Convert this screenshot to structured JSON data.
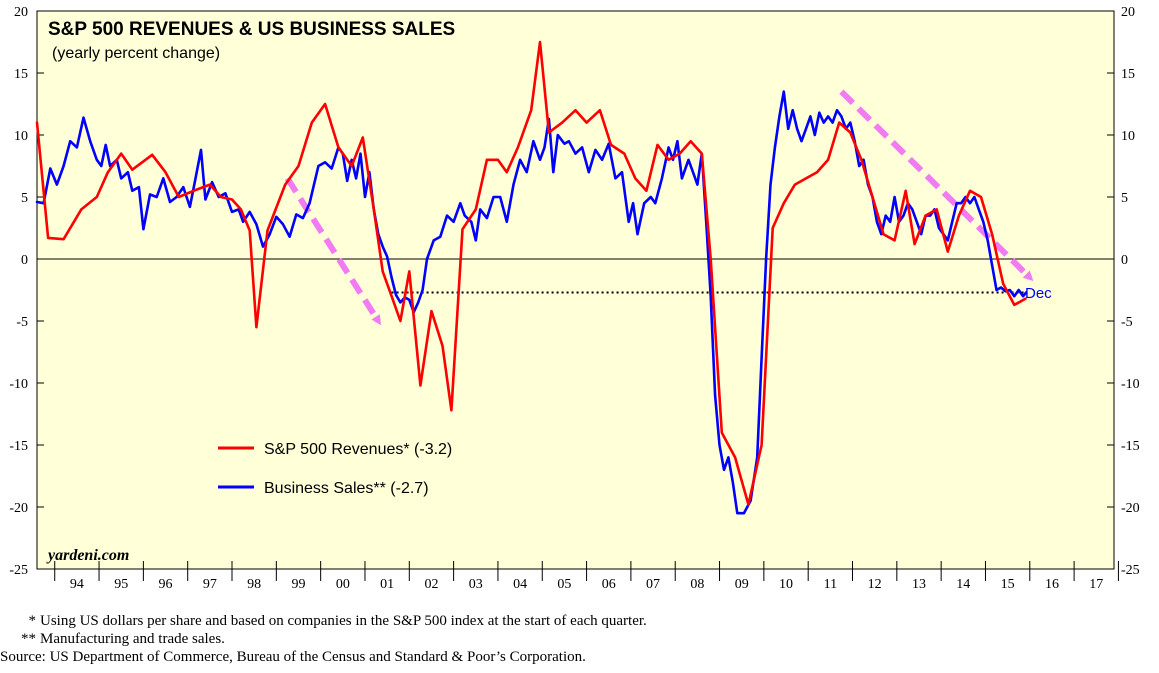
{
  "chart_data": {
    "type": "line",
    "title": "S&P 500 REVENUES & US BUSINESS SALES",
    "subtitle": "(yearly percent change)",
    "watermark": "yardeni.com",
    "ylim": [
      -25,
      20
    ],
    "y_ticks": [
      20,
      15,
      10,
      5,
      0,
      -5,
      -10,
      -15,
      -20,
      -25
    ],
    "xlim": [
      1993.6,
      2017.9
    ],
    "x_tick_labels": [
      "94",
      "95",
      "96",
      "97",
      "98",
      "99",
      "00",
      "01",
      "02",
      "03",
      "04",
      "05",
      "06",
      "07",
      "08",
      "09",
      "10",
      "11",
      "12",
      "13",
      "14",
      "15",
      "16",
      "17"
    ],
    "grid": false,
    "legend_position": "lower-left",
    "annotation_dec": "Dec",
    "reference_line_value": -2.7,
    "series": [
      {
        "name": "S&P 500 Revenues* (-3.2)",
        "color": "#ff0000",
        "points": [
          [
            1993.6,
            11
          ],
          [
            1993.85,
            1.7
          ],
          [
            1994.2,
            1.6
          ],
          [
            1994.6,
            4
          ],
          [
            1994.95,
            5
          ],
          [
            1995.2,
            7
          ],
          [
            1995.5,
            8.5
          ],
          [
            1995.75,
            7.2
          ],
          [
            1996.2,
            8.4
          ],
          [
            1996.5,
            7
          ],
          [
            1996.8,
            5
          ],
          [
            1997.2,
            5.6
          ],
          [
            1997.5,
            6
          ],
          [
            1997.75,
            5
          ],
          [
            1998.0,
            4.8
          ],
          [
            1998.2,
            4
          ],
          [
            1998.4,
            2.3
          ],
          [
            1998.55,
            -5.5
          ],
          [
            1998.8,
            2.3
          ],
          [
            1999.2,
            6
          ],
          [
            1999.5,
            7.5
          ],
          [
            1999.8,
            11
          ],
          [
            2000.1,
            12.5
          ],
          [
            2000.4,
            9
          ],
          [
            2000.7,
            7.5
          ],
          [
            2000.95,
            9.8
          ],
          [
            2001.2,
            4
          ],
          [
            2001.4,
            -1
          ],
          [
            2001.6,
            -3
          ],
          [
            2001.8,
            -5
          ],
          [
            2002.0,
            -1
          ],
          [
            2002.25,
            -10.2
          ],
          [
            2002.5,
            -4.2
          ],
          [
            2002.75,
            -7
          ],
          [
            2002.95,
            -12.2
          ],
          [
            2003.2,
            2.4
          ],
          [
            2003.5,
            4
          ],
          [
            2003.75,
            8
          ],
          [
            2004.0,
            8
          ],
          [
            2004.2,
            7
          ],
          [
            2004.45,
            9
          ],
          [
            2004.75,
            12
          ],
          [
            2004.95,
            17.5
          ],
          [
            2005.15,
            10.2
          ],
          [
            2005.45,
            11
          ],
          [
            2005.75,
            12
          ],
          [
            2006.0,
            11
          ],
          [
            2006.3,
            12
          ],
          [
            2006.55,
            9.2
          ],
          [
            2006.85,
            8.5
          ],
          [
            2007.1,
            6.5
          ],
          [
            2007.35,
            5.5
          ],
          [
            2007.6,
            9.2
          ],
          [
            2007.85,
            8
          ],
          [
            2008.1,
            8.5
          ],
          [
            2008.35,
            9.5
          ],
          [
            2008.6,
            8.5
          ],
          [
            2008.8,
            0
          ],
          [
            2009.05,
            -14
          ],
          [
            2009.35,
            -16
          ],
          [
            2009.65,
            -19.8
          ],
          [
            2009.95,
            -15
          ],
          [
            2010.2,
            2.5
          ],
          [
            2010.45,
            4.5
          ],
          [
            2010.7,
            6
          ],
          [
            2010.95,
            6.5
          ],
          [
            2011.2,
            7
          ],
          [
            2011.45,
            8
          ],
          [
            2011.7,
            11
          ],
          [
            2011.95,
            10.2
          ],
          [
            2012.2,
            8
          ],
          [
            2012.45,
            5
          ],
          [
            2012.7,
            2
          ],
          [
            2012.95,
            1.5
          ],
          [
            2013.2,
            5.5
          ],
          [
            2013.4,
            1.2
          ],
          [
            2013.65,
            3.5
          ],
          [
            2013.9,
            4
          ],
          [
            2014.15,
            0.6
          ],
          [
            2014.4,
            3.5
          ],
          [
            2014.65,
            5.5
          ],
          [
            2014.9,
            5
          ],
          [
            2015.15,
            2
          ],
          [
            2015.4,
            -2
          ],
          [
            2015.65,
            -3.7
          ],
          [
            2015.9,
            -3.2
          ]
        ]
      },
      {
        "name": "Business Sales** (-2.7)",
        "color": "#0000ff",
        "points": [
          [
            1993.6,
            4.6
          ],
          [
            1993.75,
            4.5
          ],
          [
            1993.9,
            7.3
          ],
          [
            1994.05,
            6
          ],
          [
            1994.2,
            7.5
          ],
          [
            1994.35,
            9.5
          ],
          [
            1994.5,
            9
          ],
          [
            1994.65,
            11.4
          ],
          [
            1994.8,
            9.5
          ],
          [
            1994.95,
            8
          ],
          [
            1995.05,
            7.5
          ],
          [
            1995.15,
            9.2
          ],
          [
            1995.25,
            7.5
          ],
          [
            1995.4,
            8
          ],
          [
            1995.5,
            6.5
          ],
          [
            1995.65,
            7
          ],
          [
            1995.75,
            5.5
          ],
          [
            1995.9,
            5.8
          ],
          [
            1996.0,
            2.4
          ],
          [
            1996.15,
            5.2
          ],
          [
            1996.3,
            5
          ],
          [
            1996.45,
            6.5
          ],
          [
            1996.6,
            4.6
          ],
          [
            1996.75,
            5
          ],
          [
            1996.9,
            5.8
          ],
          [
            1997.05,
            4.2
          ],
          [
            1997.15,
            6
          ],
          [
            1997.3,
            8.8
          ],
          [
            1997.4,
            4.8
          ],
          [
            1997.55,
            6.2
          ],
          [
            1997.7,
            5
          ],
          [
            1997.85,
            5.3
          ],
          [
            1998.0,
            3.8
          ],
          [
            1998.15,
            4
          ],
          [
            1998.25,
            3
          ],
          [
            1998.4,
            3.8
          ],
          [
            1998.55,
            2.8
          ],
          [
            1998.7,
            1
          ],
          [
            1998.85,
            2
          ],
          [
            1999.0,
            3.4
          ],
          [
            1999.15,
            2.8
          ],
          [
            1999.3,
            1.8
          ],
          [
            1999.45,
            3.6
          ],
          [
            1999.6,
            3.3
          ],
          [
            1999.75,
            4.5
          ],
          [
            1999.85,
            6
          ],
          [
            1999.95,
            7.5
          ],
          [
            2000.1,
            7.8
          ],
          [
            2000.25,
            7.3
          ],
          [
            2000.4,
            9
          ],
          [
            2000.5,
            8.5
          ],
          [
            2000.6,
            6.3
          ],
          [
            2000.7,
            8
          ],
          [
            2000.8,
            6.5
          ],
          [
            2000.9,
            8.5
          ],
          [
            2001.0,
            5
          ],
          [
            2001.1,
            7
          ],
          [
            2001.2,
            4
          ],
          [
            2001.3,
            2
          ],
          [
            2001.4,
            1
          ],
          [
            2001.5,
            0.2
          ],
          [
            2001.6,
            -1.5
          ],
          [
            2001.7,
            -2.9
          ],
          [
            2001.8,
            -3.5
          ],
          [
            2001.9,
            -3.1
          ],
          [
            2002.0,
            -3.3
          ],
          [
            2002.1,
            -4.3
          ],
          [
            2002.2,
            -3.5
          ],
          [
            2002.3,
            -2.5
          ],
          [
            2002.4,
            0
          ],
          [
            2002.55,
            1.5
          ],
          [
            2002.7,
            1.8
          ],
          [
            2002.85,
            3.5
          ],
          [
            2003.0,
            3
          ],
          [
            2003.15,
            4.5
          ],
          [
            2003.25,
            3.5
          ],
          [
            2003.4,
            3
          ],
          [
            2003.5,
            1.5
          ],
          [
            2003.6,
            4
          ],
          [
            2003.75,
            3.3
          ],
          [
            2003.9,
            5
          ],
          [
            2004.05,
            5
          ],
          [
            2004.2,
            3
          ],
          [
            2004.35,
            6
          ],
          [
            2004.5,
            8
          ],
          [
            2004.65,
            7
          ],
          [
            2004.8,
            9.5
          ],
          [
            2004.95,
            8
          ],
          [
            2005.05,
            9
          ],
          [
            2005.15,
            11.3
          ],
          [
            2005.25,
            7
          ],
          [
            2005.35,
            10
          ],
          [
            2005.5,
            9.3
          ],
          [
            2005.6,
            9.5
          ],
          [
            2005.75,
            8.5
          ],
          [
            2005.9,
            9
          ],
          [
            2006.05,
            7
          ],
          [
            2006.2,
            8.8
          ],
          [
            2006.35,
            8
          ],
          [
            2006.5,
            9.3
          ],
          [
            2006.65,
            6.5
          ],
          [
            2006.8,
            7
          ],
          [
            2006.95,
            3
          ],
          [
            2007.05,
            4.5
          ],
          [
            2007.15,
            2
          ],
          [
            2007.3,
            4.5
          ],
          [
            2007.45,
            5
          ],
          [
            2007.55,
            4.5
          ],
          [
            2007.7,
            6.5
          ],
          [
            2007.85,
            9
          ],
          [
            2007.95,
            8
          ],
          [
            2008.05,
            9.5
          ],
          [
            2008.15,
            6.5
          ],
          [
            2008.3,
            8
          ],
          [
            2008.4,
            7
          ],
          [
            2008.5,
            6
          ],
          [
            2008.6,
            8.5
          ],
          [
            2008.7,
            3
          ],
          [
            2008.8,
            -3
          ],
          [
            2008.9,
            -11
          ],
          [
            2009.0,
            -15
          ],
          [
            2009.1,
            -17
          ],
          [
            2009.2,
            -16
          ],
          [
            2009.3,
            -18
          ],
          [
            2009.4,
            -20.5
          ],
          [
            2009.55,
            -20.5
          ],
          [
            2009.7,
            -19.5
          ],
          [
            2009.85,
            -16
          ],
          [
            2009.95,
            -8
          ],
          [
            2010.05,
            0
          ],
          [
            2010.15,
            6
          ],
          [
            2010.25,
            9
          ],
          [
            2010.35,
            11.5
          ],
          [
            2010.45,
            13.5
          ],
          [
            2010.55,
            10.5
          ],
          [
            2010.65,
            12
          ],
          [
            2010.75,
            10.5
          ],
          [
            2010.85,
            9.5
          ],
          [
            2010.95,
            10.5
          ],
          [
            2011.05,
            11.5
          ],
          [
            2011.15,
            10
          ],
          [
            2011.25,
            11.8
          ],
          [
            2011.35,
            11
          ],
          [
            2011.45,
            11.5
          ],
          [
            2011.55,
            11
          ],
          [
            2011.65,
            12
          ],
          [
            2011.75,
            11.5
          ],
          [
            2011.85,
            10.5
          ],
          [
            2011.95,
            11
          ],
          [
            2012.05,
            9.5
          ],
          [
            2012.15,
            7.5
          ],
          [
            2012.25,
            8
          ],
          [
            2012.35,
            6
          ],
          [
            2012.45,
            5
          ],
          [
            2012.55,
            3
          ],
          [
            2012.65,
            2
          ],
          [
            2012.75,
            3.5
          ],
          [
            2012.85,
            3
          ],
          [
            2012.95,
            5
          ],
          [
            2013.05,
            3
          ],
          [
            2013.15,
            3.5
          ],
          [
            2013.25,
            4.5
          ],
          [
            2013.35,
            4
          ],
          [
            2013.45,
            3
          ],
          [
            2013.55,
            2
          ],
          [
            2013.65,
            3.5
          ],
          [
            2013.75,
            3.5
          ],
          [
            2013.85,
            4
          ],
          [
            2013.95,
            2.5
          ],
          [
            2014.05,
            2
          ],
          [
            2014.15,
            1.5
          ],
          [
            2014.25,
            3
          ],
          [
            2014.35,
            4.5
          ],
          [
            2014.45,
            4.5
          ],
          [
            2014.55,
            5
          ],
          [
            2014.65,
            4.5
          ],
          [
            2014.75,
            5
          ],
          [
            2014.85,
            4
          ],
          [
            2014.95,
            3
          ],
          [
            2015.05,
            1.5
          ],
          [
            2015.15,
            -0.5
          ],
          [
            2015.25,
            -2.5
          ],
          [
            2015.35,
            -2.3
          ],
          [
            2015.45,
            -2.6
          ],
          [
            2015.55,
            -2.5
          ],
          [
            2015.65,
            -3
          ],
          [
            2015.75,
            -2.5
          ],
          [
            2015.85,
            -3
          ],
          [
            2015.92,
            -2.7
          ]
        ]
      }
    ],
    "trend_arrows": [
      {
        "from": [
          1999.25,
          6.5
        ],
        "to": [
          2001.3,
          -5
        ]
      },
      {
        "from": [
          2011.75,
          13.5
        ],
        "to": [
          2016.0,
          -1.5
        ]
      }
    ]
  },
  "footnotes": [
    {
      "marker": "*",
      "text": "Using US dollars per share and based on companies in the S&P 500 index at the start of each quarter."
    },
    {
      "marker": "**",
      "text": "Manufacturing and trade sales."
    }
  ],
  "source": "Source: US Department of Commerce, Bureau of the Census and Standard & Poor’s Corporation.",
  "colors": {
    "plot_background": "#ffffd8",
    "arrow": "#f27af2"
  }
}
